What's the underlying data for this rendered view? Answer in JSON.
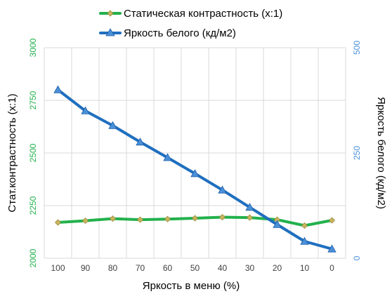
{
  "chart_data": {
    "type": "line",
    "x": [
      100,
      90,
      80,
      70,
      60,
      50,
      40,
      30,
      20,
      10,
      0
    ],
    "x_tick_labels": [
      "100",
      "90",
      "80",
      "70",
      "60",
      "50",
      "40",
      "30",
      "20",
      "10",
      "0"
    ],
    "xlabel": "Яркость в меню (%)",
    "ylabel_left": "Стат.контрастность  (x:1)",
    "ylabel_right": "Яркость белого (кд/м2)",
    "ylim_left": [
      2000,
      3000
    ],
    "ylim_right": [
      0,
      500
    ],
    "yticks_left": [
      "3000",
      "2750",
      "2500",
      "2250",
      "2000"
    ],
    "yticks_right": [
      "500",
      "250",
      "0"
    ],
    "grid": true,
    "legend_position": "top",
    "series": [
      {
        "name": "Статическая контрастность  (x:1)",
        "axis": "left",
        "color": "#22b14c",
        "marker_color": "#c8b560",
        "marker": "diamond",
        "values": [
          2170,
          2178,
          2188,
          2183,
          2186,
          2190,
          2195,
          2193,
          2183,
          2155,
          2180
        ]
      },
      {
        "name": "Яркость белого (кд/м2)",
        "axis": "right",
        "color": "#1f6fbf",
        "marker_color": "#4a90d9",
        "marker": "triangle",
        "values": [
          400,
          350,
          315,
          276,
          239,
          201,
          162,
          121,
          80,
          40,
          22
        ]
      }
    ]
  }
}
